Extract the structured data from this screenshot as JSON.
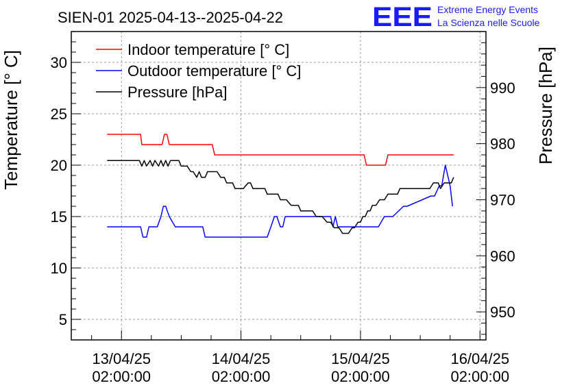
{
  "chart_data": {
    "type": "line",
    "title": "SIEN-01 2025-04-13--2025-04-22",
    "logo": {
      "mark": "EEE",
      "line1": "Extreme Energy Events",
      "line2": "La Scienza nelle Scuole",
      "color": "#1a1aff"
    },
    "ylabel_left": "Temperature [° C]",
    "ylabel_right": "Pressure [hPa]",
    "ylim_left": [
      3,
      33
    ],
    "ylim_right": [
      945,
      1000
    ],
    "yticks_left": [
      5,
      10,
      15,
      20,
      25,
      30
    ],
    "yticks_right": [
      950,
      960,
      970,
      980,
      990
    ],
    "xlim": [
      -0.42,
      3.05
    ],
    "xticks": [
      {
        "pos": 0,
        "line1": "13/04/25",
        "line2": "02:00:00"
      },
      {
        "pos": 1,
        "line1": "14/04/25",
        "line2": "02:00:00"
      },
      {
        "pos": 2,
        "line1": "15/04/25",
        "line2": "02:00:00"
      },
      {
        "pos": 3,
        "line1": "16/04/25",
        "line2": "02:00:00"
      }
    ],
    "grid": true,
    "legend_position": "top-left",
    "series": [
      {
        "name": "Indoor temperature [° C]",
        "color": "#ff0000",
        "axis": "left",
        "x": [
          -0.12,
          0.16,
          0.17,
          0.34,
          0.36,
          0.38,
          0.4,
          0.76,
          0.78,
          2.03,
          2.05,
          2.21,
          2.23,
          2.78
        ],
        "y": [
          23,
          23,
          22,
          22,
          23,
          23,
          22,
          22,
          21,
          21,
          20,
          20,
          21,
          21
        ]
      },
      {
        "name": "Outdoor temperature [° C]",
        "color": "#0000ff",
        "axis": "left",
        "x": [
          -0.12,
          0.16,
          0.18,
          0.21,
          0.23,
          0.3,
          0.33,
          0.35,
          0.37,
          0.4,
          0.45,
          0.68,
          0.7,
          1.22,
          1.25,
          1.28,
          1.3,
          1.33,
          1.35,
          1.37,
          1.4,
          1.75,
          1.77,
          1.79,
          1.81,
          2.15,
          2.2,
          2.25,
          2.27,
          2.36,
          2.39,
          2.59,
          2.62,
          2.66,
          2.68,
          2.71,
          2.75,
          2.77
        ],
        "y": [
          14,
          14,
          13,
          13,
          14,
          14,
          15,
          16,
          16,
          15,
          14,
          14,
          13,
          13,
          14,
          15,
          15,
          14,
          14,
          15,
          15,
          15,
          14,
          15,
          14,
          14,
          15,
          15,
          15,
          16,
          16,
          17,
          17,
          18,
          18,
          20,
          18,
          16
        ]
      },
      {
        "name": "Pressure [hPa]",
        "color": "#000000",
        "axis": "right",
        "x": [
          -0.12,
          0.15,
          0.17,
          0.19,
          0.21,
          0.24,
          0.26,
          0.28,
          0.31,
          0.33,
          0.35,
          0.37,
          0.39,
          0.41,
          0.48,
          0.5,
          0.52,
          0.55,
          0.58,
          0.6,
          0.63,
          0.65,
          0.67,
          0.7,
          0.72,
          0.75,
          0.78,
          0.8,
          0.83,
          0.86,
          0.88,
          0.91,
          0.93,
          0.95,
          0.98,
          1.02,
          1.06,
          1.08,
          1.1,
          1.13,
          1.15,
          1.2,
          1.22,
          1.29,
          1.31,
          1.33,
          1.38,
          1.42,
          1.45,
          1.48,
          1.5,
          1.53,
          1.56,
          1.58,
          1.6,
          1.63,
          1.65,
          1.68,
          1.72,
          1.75,
          1.78,
          1.82,
          1.85,
          1.88,
          1.9,
          1.93,
          1.95,
          1.98,
          2.0,
          2.02,
          2.04,
          2.06,
          2.08,
          2.1,
          2.13,
          2.16,
          2.18,
          2.2,
          2.23,
          2.25,
          2.28,
          2.31,
          2.33,
          2.36,
          2.38,
          2.41,
          2.44,
          2.47,
          2.5,
          2.53,
          2.56,
          2.58,
          2.61,
          2.63,
          2.65,
          2.67,
          2.7,
          2.72,
          2.74,
          2.76,
          2.78
        ],
        "y": [
          977,
          977,
          976,
          977,
          976,
          977,
          976,
          977,
          976,
          977,
          976,
          977,
          976,
          977,
          977,
          976,
          976,
          976,
          975,
          975,
          974,
          975,
          974,
          974,
          975,
          975,
          975,
          975,
          974,
          974,
          973,
          973,
          973,
          972,
          972,
          972,
          973,
          973,
          972,
          972,
          972,
          972,
          971,
          971,
          971,
          970,
          970,
          969,
          969,
          969,
          968,
          968,
          968,
          968,
          968,
          967,
          967,
          967,
          966,
          966,
          965,
          965,
          964,
          964,
          964,
          965,
          965,
          966,
          966,
          967,
          967,
          968,
          968,
          969,
          969,
          970,
          970,
          970,
          971,
          971,
          971,
          971,
          972,
          972,
          972,
          972,
          972,
          972,
          972,
          972,
          972,
          972,
          973,
          973,
          973,
          972,
          973,
          973,
          973,
          973,
          974
        ]
      }
    ]
  }
}
